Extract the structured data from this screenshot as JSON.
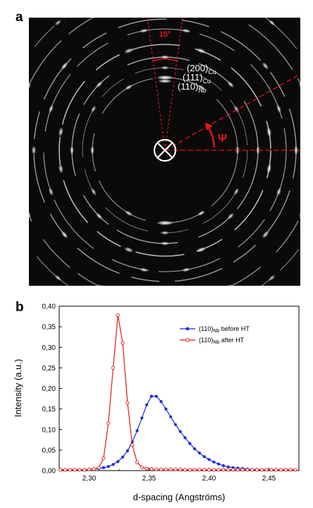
{
  "panel_a": {
    "label": "a",
    "angle_label": "15°",
    "psi_label": "Ψ",
    "reflections": [
      {
        "hkl": "(200)",
        "phase": "Cu"
      },
      {
        "hkl": "(111)",
        "phase": "Cu"
      },
      {
        "hkl": "(110)",
        "phase": "Nb"
      }
    ],
    "colors": {
      "background": "#0a0a0a",
      "annotation": "#e8141b",
      "rings": "#ffffff"
    }
  },
  "panel_b": {
    "label": "b"
  },
  "chart_data": {
    "type": "line",
    "xlabel": "d-spacing (Angströms)",
    "ylabel": "Intensity (a.u.)",
    "xlim": [
      2.275,
      2.475
    ],
    "ylim": [
      0,
      0.4
    ],
    "xticks": [
      2.3,
      2.35,
      2.4,
      2.45
    ],
    "xtick_labels": [
      "2,30",
      "2,35",
      "2,40",
      "2,45"
    ],
    "yticks": [
      0,
      0.05,
      0.1,
      0.15,
      0.2,
      0.25,
      0.3,
      0.35,
      0.4
    ],
    "ytick_labels": [
      "0,00",
      "0,05",
      "0,10",
      "0,15",
      "0,20",
      "0,25",
      "0,30",
      "0,35",
      "0,40"
    ],
    "legend_position": "top-right",
    "series": [
      {
        "name": "(110)",
        "name_sub": "Nb",
        "name_suffix": " before HT",
        "color": "#1a2bd6",
        "marker": "filled-circle",
        "x": [
          2.276,
          2.28,
          2.284,
          2.288,
          2.292,
          2.296,
          2.3,
          2.304,
          2.308,
          2.312,
          2.316,
          2.32,
          2.324,
          2.328,
          2.332,
          2.336,
          2.34,
          2.344,
          2.348,
          2.352,
          2.356,
          2.36,
          2.364,
          2.368,
          2.372,
          2.376,
          2.38,
          2.384,
          2.388,
          2.392,
          2.396,
          2.4,
          2.404,
          2.408,
          2.412,
          2.416,
          2.42,
          2.424,
          2.428,
          2.432,
          2.436,
          2.44,
          2.444,
          2.448,
          2.452,
          2.456,
          2.46,
          2.464,
          2.468,
          2.472
        ],
        "y": [
          0.002,
          0.002,
          0.002,
          0.002,
          0.002,
          0.002,
          0.003,
          0.004,
          0.005,
          0.007,
          0.01,
          0.015,
          0.022,
          0.033,
          0.048,
          0.07,
          0.097,
          0.128,
          0.16,
          0.181,
          0.181,
          0.168,
          0.15,
          0.131,
          0.112,
          0.095,
          0.08,
          0.066,
          0.053,
          0.043,
          0.034,
          0.027,
          0.021,
          0.016,
          0.012,
          0.009,
          0.007,
          0.006,
          0.005,
          0.004,
          0.003,
          0.003,
          0.002,
          0.002,
          0.002,
          0.002,
          0.002,
          0.002,
          0.002,
          0.002
        ]
      },
      {
        "name": "(110)",
        "name_sub": "Nb",
        "name_suffix": " after HT",
        "color": "#e01b1b",
        "marker": "open-circle",
        "x": [
          2.276,
          2.28,
          2.284,
          2.288,
          2.292,
          2.296,
          2.3,
          2.304,
          2.308,
          2.312,
          2.316,
          2.32,
          2.324,
          2.328,
          2.332,
          2.336,
          2.34,
          2.344,
          2.348,
          2.352,
          2.356,
          2.36,
          2.364,
          2.368,
          2.372,
          2.376,
          2.38,
          2.384,
          2.388,
          2.392,
          2.396,
          2.4,
          2.404,
          2.408,
          2.412,
          2.416,
          2.42,
          2.424,
          2.428,
          2.432,
          2.436,
          2.44,
          2.444,
          2.448,
          2.452,
          2.456,
          2.46,
          2.464,
          2.468,
          2.472
        ],
        "y": [
          0.002,
          0.002,
          0.002,
          0.002,
          0.002,
          0.002,
          0.003,
          0.004,
          0.007,
          0.03,
          0.115,
          0.25,
          0.378,
          0.31,
          0.165,
          0.062,
          0.02,
          0.008,
          0.005,
          0.004,
          0.003,
          0.003,
          0.003,
          0.003,
          0.003,
          0.003,
          0.002,
          0.002,
          0.002,
          0.002,
          0.002,
          0.002,
          0.002,
          0.002,
          0.002,
          0.002,
          0.002,
          0.002,
          0.002,
          0.002,
          0.002,
          0.002,
          0.002,
          0.002,
          0.002,
          0.002,
          0.002,
          0.002,
          0.002,
          0.002
        ]
      }
    ]
  }
}
